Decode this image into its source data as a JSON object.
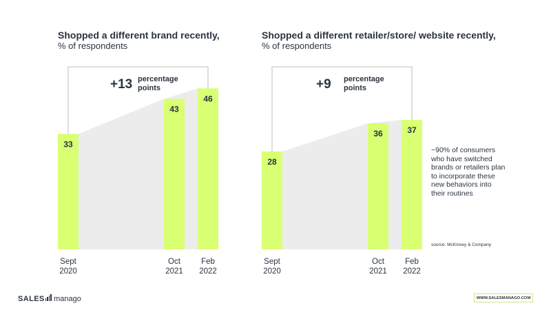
{
  "colors": {
    "bar": "#d9ff72",
    "area": "#ececec",
    "bracket": "#c9c9c9",
    "text": "#2b3340"
  },
  "chart_data": [
    {
      "type": "bar",
      "title": "Shopped a different brand recently,",
      "subtitle": "% of respondents",
      "categories": [
        "Sept 2020",
        "Oct 2021",
        "Feb 2022"
      ],
      "category_lines": [
        [
          "Sept",
          "2020"
        ],
        [
          "Oct",
          "2021"
        ],
        [
          "Feb",
          "2022"
        ]
      ],
      "values": [
        33,
        43,
        46
      ],
      "annotation": {
        "value": "+13",
        "unit": [
          "percentage",
          "points"
        ]
      },
      "xlabel": "",
      "ylabel": "",
      "grid": false
    },
    {
      "type": "bar",
      "title": "Shopped a different retailer/store/ website recently,",
      "subtitle": "% of respondents",
      "categories": [
        "Sept 2020",
        "Oct 2021",
        "Feb 2022"
      ],
      "category_lines": [
        [
          "Sept",
          "2020"
        ],
        [
          "Oct",
          "2021"
        ],
        [
          "Feb",
          "2022"
        ]
      ],
      "values": [
        28,
        36,
        37
      ],
      "annotation": {
        "value": "+9",
        "unit": [
          "percentage",
          "points"
        ]
      },
      "xlabel": "",
      "ylabel": "",
      "grid": false
    }
  ],
  "note": "~90% of consumers who have switched brands or retailers plan to incorporate these new behaviors into their routines",
  "source": "source: McKinsey & Company",
  "logo": {
    "part1": "SALES",
    "part2": "manago"
  },
  "footer_url": "WWW.SALESMANAGO.COM"
}
